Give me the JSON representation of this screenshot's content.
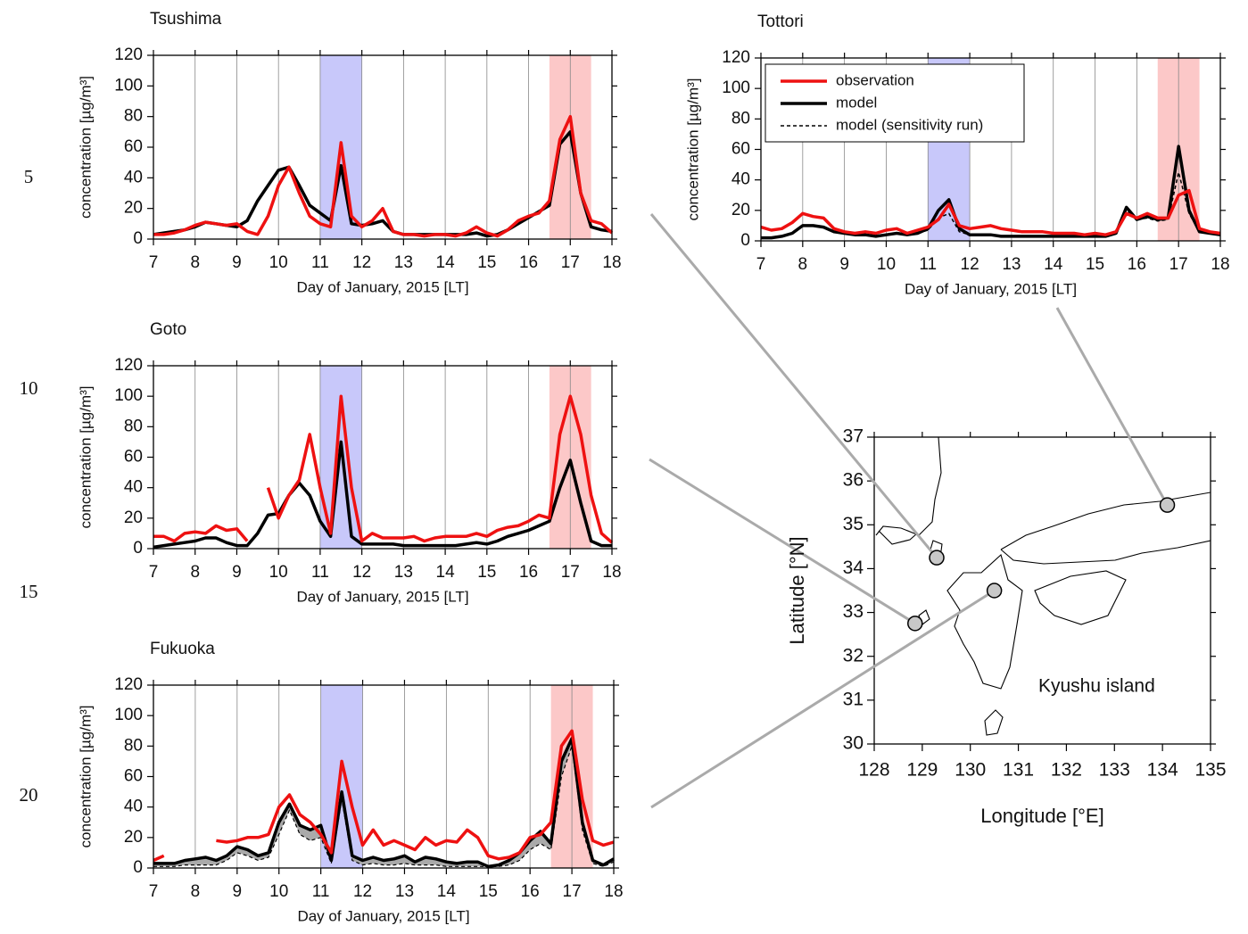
{
  "line_numbers": [
    5,
    10,
    15,
    20
  ],
  "chart_data": [
    {
      "type": "line",
      "title": "Tsushima",
      "xlabel": "Day of January, 2015 [LT]",
      "ylabel": "concentration [µg/m³]",
      "xlim": [
        7,
        18
      ],
      "ylim": [
        0,
        120
      ],
      "xticks": [
        7,
        8,
        9,
        10,
        11,
        12,
        13,
        14,
        15,
        16,
        17,
        18
      ],
      "yticks": [
        0,
        20,
        40,
        60,
        80,
        100,
        120
      ],
      "grid": true,
      "bands": [
        {
          "x0": 11,
          "x1": 12,
          "color": "#c8c8fa"
        },
        {
          "x0": 16.5,
          "x1": 17.5,
          "color": "#fcc8c8"
        }
      ],
      "x": [
        7,
        7.25,
        7.5,
        7.75,
        8,
        8.25,
        8.5,
        8.75,
        9,
        9.25,
        9.5,
        9.75,
        10,
        10.25,
        10.5,
        10.75,
        11,
        11.25,
        11.5,
        11.75,
        12,
        12.25,
        12.5,
        12.75,
        13,
        13.25,
        13.5,
        13.75,
        14,
        14.25,
        14.5,
        14.75,
        15,
        15.25,
        15.5,
        15.75,
        16,
        16.25,
        16.5,
        16.75,
        17,
        17.25,
        17.5,
        17.75,
        18
      ],
      "series": [
        {
          "color": "#ee1111",
          "width": 3.5,
          "values": [
            3,
            3,
            4,
            6,
            9,
            11,
            10,
            9,
            10,
            5,
            3,
            15,
            35,
            47,
            30,
            15,
            10,
            8,
            63,
            15,
            8,
            12,
            20,
            5,
            3,
            3,
            2,
            3,
            3,
            2,
            4,
            8,
            4,
            2,
            6,
            12,
            15,
            17,
            25,
            65,
            80,
            30,
            12,
            10,
            4
          ]
        },
        {
          "color": "#000000",
          "width": 3.5,
          "values": [
            3,
            4,
            5,
            6,
            8,
            11,
            10,
            9,
            8,
            12,
            25,
            35,
            45,
            47,
            35,
            22,
            17,
            12,
            48,
            10,
            9,
            10,
            12,
            5,
            3,
            3,
            3,
            3,
            3,
            3,
            3,
            4,
            2,
            3,
            6,
            10,
            14,
            18,
            22,
            62,
            70,
            30,
            8,
            6,
            5
          ]
        }
      ]
    },
    {
      "type": "line",
      "title": "Tottori",
      "xlabel": "Day of January, 2015 [LT]",
      "ylabel": "concentration [µg/m³]",
      "xlim": [
        7,
        18
      ],
      "ylim": [
        0,
        120
      ],
      "xticks": [
        7,
        8,
        9,
        10,
        11,
        12,
        13,
        14,
        15,
        16,
        17,
        18
      ],
      "yticks": [
        0,
        20,
        40,
        60,
        80,
        100,
        120
      ],
      "grid": true,
      "legend": "upper left",
      "bands": [
        {
          "x0": 11,
          "x1": 12,
          "color": "#c8c8fa"
        },
        {
          "x0": 16.5,
          "x1": 17.5,
          "color": "#fcc8c8"
        }
      ],
      "x": [
        7,
        7.25,
        7.5,
        7.75,
        8,
        8.25,
        8.5,
        8.75,
        9,
        9.25,
        9.5,
        9.75,
        10,
        10.25,
        10.5,
        10.75,
        11,
        11.25,
        11.5,
        11.75,
        12,
        12.25,
        12.5,
        12.75,
        13,
        13.25,
        13.5,
        13.75,
        14,
        14.25,
        14.5,
        14.75,
        15,
        15.25,
        15.5,
        15.75,
        16,
        16.25,
        16.5,
        16.75,
        17,
        17.25,
        17.5,
        17.75,
        18
      ],
      "series": [
        {
          "name": "observation",
          "color": "#ee1111",
          "width": 3.5,
          "values": [
            9,
            7,
            8,
            12,
            18,
            16,
            15,
            8,
            6,
            5,
            6,
            5,
            7,
            8,
            5,
            7,
            9,
            14,
            24,
            10,
            8,
            9,
            10,
            8,
            7,
            6,
            6,
            6,
            5,
            5,
            5,
            4,
            5,
            4,
            6,
            18,
            15,
            18,
            15,
            15,
            30,
            33,
            8,
            6,
            5
          ]
        },
        {
          "name": "model",
          "color": "#000000",
          "width": 3.5,
          "values": [
            2,
            2,
            3,
            5,
            10,
            10,
            9,
            6,
            5,
            4,
            4,
            3,
            4,
            5,
            4,
            5,
            8,
            20,
            27,
            8,
            4,
            4,
            4,
            3,
            3,
            3,
            3,
            3,
            3,
            3,
            3,
            3,
            3,
            3,
            5,
            22,
            14,
            16,
            14,
            15,
            62,
            20,
            6,
            5,
            4
          ]
        },
        {
          "name": "model (sensitivity run)",
          "color": "#000000",
          "width": 1.5,
          "dash": true,
          "values": [
            2,
            2,
            3,
            5,
            10,
            10,
            9,
            6,
            5,
            4,
            4,
            3,
            4,
            5,
            4,
            5,
            7,
            15,
            18,
            6,
            4,
            4,
            4,
            3,
            3,
            3,
            3,
            3,
            3,
            3,
            3,
            3,
            3,
            3,
            5,
            20,
            14,
            15,
            13,
            14,
            45,
            18,
            6,
            5,
            4
          ]
        }
      ]
    },
    {
      "type": "line",
      "title": "Goto",
      "xlabel": "Day of January, 2015 [LT]",
      "ylabel": "concentration [µg/m³]",
      "xlim": [
        7,
        18
      ],
      "ylim": [
        0,
        120
      ],
      "xticks": [
        7,
        8,
        9,
        10,
        11,
        12,
        13,
        14,
        15,
        16,
        17,
        18
      ],
      "yticks": [
        0,
        20,
        40,
        60,
        80,
        100,
        120
      ],
      "grid": true,
      "bands": [
        {
          "x0": 11,
          "x1": 12,
          "color": "#c8c8fa"
        },
        {
          "x0": 16.5,
          "x1": 17.5,
          "color": "#fcc8c8"
        }
      ],
      "x": [
        7,
        7.25,
        7.5,
        7.75,
        8,
        8.25,
        8.5,
        8.75,
        9,
        9.25,
        9.5,
        9.75,
        10,
        10.25,
        10.5,
        10.75,
        11,
        11.25,
        11.5,
        11.75,
        12,
        12.25,
        12.5,
        12.75,
        13,
        13.25,
        13.5,
        13.75,
        14,
        14.25,
        14.5,
        14.75,
        15,
        15.25,
        15.5,
        15.75,
        16,
        16.25,
        16.5,
        16.75,
        17,
        17.25,
        17.5,
        17.75,
        18
      ],
      "series": [
        {
          "color": "#ee1111",
          "width": 3.5,
          "values": [
            8,
            8,
            5,
            10,
            11,
            10,
            15,
            12,
            13,
            5,
            null,
            40,
            20,
            35,
            45,
            75,
            40,
            10,
            100,
            40,
            5,
            10,
            7,
            7,
            7,
            8,
            5,
            7,
            8,
            8,
            8,
            10,
            8,
            12,
            14,
            15,
            18,
            22,
            20,
            75,
            100,
            75,
            35,
            10,
            4
          ]
        },
        {
          "color": "#000000",
          "width": 3.5,
          "values": [
            1,
            2,
            3,
            4,
            5,
            7,
            7,
            4,
            2,
            2,
            10,
            22,
            23,
            35,
            43,
            35,
            18,
            8,
            70,
            8,
            3,
            3,
            3,
            3,
            2,
            2,
            2,
            2,
            2,
            2,
            3,
            4,
            3,
            5,
            8,
            10,
            12,
            15,
            18,
            40,
            58,
            30,
            5,
            2,
            2
          ]
        }
      ]
    },
    {
      "type": "line",
      "title": "Fukuoka",
      "xlabel": "Day of January, 2015 [LT]",
      "ylabel": "concentration [µg/m³]",
      "xlim": [
        7,
        18
      ],
      "ylim": [
        0,
        120
      ],
      "xticks": [
        7,
        8,
        9,
        10,
        11,
        12,
        13,
        14,
        15,
        16,
        17,
        18
      ],
      "yticks": [
        0,
        20,
        40,
        60,
        80,
        100,
        120
      ],
      "grid": true,
      "fill_between": true,
      "fill_color": "#aaaaaa",
      "bands": [
        {
          "x0": 11,
          "x1": 12,
          "color": "#c8c8fa"
        },
        {
          "x0": 16.5,
          "x1": 17.5,
          "color": "#fcc8c8"
        }
      ],
      "x": [
        7,
        7.25,
        7.5,
        7.75,
        8,
        8.25,
        8.5,
        8.75,
        9,
        9.25,
        9.5,
        9.75,
        10,
        10.25,
        10.5,
        10.75,
        11,
        11.25,
        11.5,
        11.75,
        12,
        12.25,
        12.5,
        12.75,
        13,
        13.25,
        13.5,
        13.75,
        14,
        14.25,
        14.5,
        14.75,
        15,
        15.25,
        15.5,
        15.75,
        16,
        16.25,
        16.5,
        16.75,
        17,
        17.25,
        17.5,
        17.75,
        18
      ],
      "series": [
        {
          "color": "#ee1111",
          "width": 3.5,
          "values": [
            5,
            8,
            null,
            null,
            null,
            null,
            18,
            17,
            18,
            20,
            20,
            22,
            40,
            48,
            35,
            30,
            22,
            10,
            70,
            40,
            15,
            25,
            15,
            18,
            15,
            12,
            20,
            15,
            18,
            17,
            25,
            20,
            8,
            6,
            7,
            10,
            20,
            22,
            30,
            80,
            90,
            45,
            18,
            15,
            17
          ]
        },
        {
          "color": "#000000",
          "width": 3.5,
          "values": [
            3,
            3,
            3,
            5,
            6,
            7,
            5,
            8,
            14,
            12,
            8,
            10,
            30,
            42,
            28,
            25,
            28,
            5,
            50,
            8,
            5,
            7,
            5,
            6,
            8,
            4,
            7,
            6,
            4,
            3,
            4,
            4,
            1,
            2,
            5,
            10,
            18,
            24,
            16,
            70,
            85,
            30,
            5,
            2,
            6
          ]
        },
        {
          "color": "#000000",
          "width": 1.2,
          "dash": true,
          "values": [
            1,
            1,
            1,
            2,
            2,
            2,
            2,
            5,
            10,
            8,
            5,
            7,
            22,
            38,
            22,
            18,
            20,
            3,
            45,
            5,
            2,
            3,
            2,
            2,
            3,
            2,
            2,
            2,
            1,
            1,
            1,
            1,
            1,
            1,
            2,
            5,
            12,
            16,
            12,
            60,
            80,
            25,
            3,
            1,
            4
          ]
        }
      ]
    },
    {
      "type": "map",
      "xlabel": "Longitude [°E]",
      "ylabel": "Latitude [°N]",
      "annotation": "Kyushu island",
      "xlim": [
        128,
        135
      ],
      "ylim": [
        30,
        37
      ],
      "xticks": [
        128,
        129,
        130,
        131,
        132,
        133,
        134,
        135
      ],
      "yticks": [
        30,
        31,
        32,
        33,
        34,
        35,
        36,
        37
      ],
      "color": "#c8c8c8",
      "x": [
        129.3,
        134.1,
        128.85,
        130.5
      ],
      "values": [
        34.25,
        35.45,
        32.75,
        33.5
      ]
    }
  ]
}
